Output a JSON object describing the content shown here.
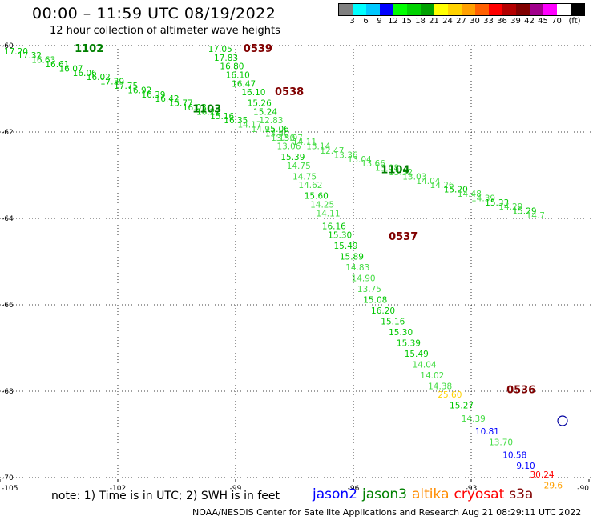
{
  "header": {
    "title": "00:00 – 11:59 UTC 08/19/2022",
    "subtitle": "12 hour collection of altimeter wave heights"
  },
  "legend": {
    "unit": "(ft)",
    "colors": [
      "#808080",
      "#00ffff",
      "#00c8ff",
      "#0000ff",
      "#00ff00",
      "#00d200",
      "#00a000",
      "#ffff00",
      "#ffd200",
      "#ffa000",
      "#ff6000",
      "#ff0000",
      "#b40000",
      "#800000",
      "#a0008c",
      "#ff00ff",
      "#ffffff",
      "#000000"
    ],
    "labels": [
      "3",
      "6",
      "9",
      "12",
      "15",
      "18",
      "21",
      "24",
      "27",
      "30",
      "33",
      "36",
      "39",
      "42",
      "45",
      "70"
    ]
  },
  "axes": {
    "x_ticks": [
      "-105",
      "-102",
      "-99",
      "-96",
      "-93",
      "-90"
    ],
    "y_ticks": [
      "-60",
      "-62",
      "-64",
      "-66",
      "-68",
      "-70"
    ]
  },
  "passes": [
    {
      "label": "1102",
      "lon": -103.1,
      "lat": -60.15,
      "color": "#008000"
    },
    {
      "label": "1103",
      "lon": -100.1,
      "lat": -61.55,
      "color": "#008000"
    },
    {
      "label": "1104",
      "lon": -95.3,
      "lat": -62.95,
      "color": "#008000"
    },
    {
      "label": "0539",
      "lon": -98.8,
      "lat": -60.15,
      "color": "#800000"
    },
    {
      "label": "0538",
      "lon": -98.0,
      "lat": -61.15,
      "color": "#800000"
    },
    {
      "label": "0537",
      "lon": -95.1,
      "lat": -64.5,
      "color": "#800000"
    },
    {
      "label": "0536",
      "lon": -92.1,
      "lat": -68.05,
      "color": "#800000"
    }
  ],
  "wave_heights": [
    {
      "v": "17.20",
      "lon": -104.9,
      "lat": -60.2,
      "c": "#00c800"
    },
    {
      "v": "17.32",
      "lon": -104.55,
      "lat": -60.3,
      "c": "#00c800"
    },
    {
      "v": "16.63",
      "lon": -104.2,
      "lat": -60.4,
      "c": "#00c800"
    },
    {
      "v": "16.61",
      "lon": -103.85,
      "lat": -60.5,
      "c": "#00c800"
    },
    {
      "v": "16.07",
      "lon": -103.5,
      "lat": -60.6,
      "c": "#00c800"
    },
    {
      "v": "16.06",
      "lon": -103.15,
      "lat": -60.7,
      "c": "#00c800"
    },
    {
      "v": "16.02",
      "lon": -102.8,
      "lat": -60.8,
      "c": "#00c800"
    },
    {
      "v": "17.39",
      "lon": -102.45,
      "lat": -60.9,
      "c": "#00c800"
    },
    {
      "v": "17.75",
      "lon": -102.1,
      "lat": -61.0,
      "c": "#00c800"
    },
    {
      "v": "16.92",
      "lon": -101.75,
      "lat": -61.1,
      "c": "#00c800"
    },
    {
      "v": "16.39",
      "lon": -101.4,
      "lat": -61.2,
      "c": "#00c800"
    },
    {
      "v": "16.42",
      "lon": -101.05,
      "lat": -61.3,
      "c": "#00c800"
    },
    {
      "v": "15.77",
      "lon": -100.7,
      "lat": -61.4,
      "c": "#00c800"
    },
    {
      "v": "16.03",
      "lon": -100.35,
      "lat": -61.5,
      "c": "#00c800"
    },
    {
      "v": "16.22",
      "lon": -100.0,
      "lat": -61.6,
      "c": "#00c800"
    },
    {
      "v": "15.16",
      "lon": -99.65,
      "lat": -61.7,
      "c": "#00c800"
    },
    {
      "v": "16.35",
      "lon": -99.3,
      "lat": -61.8,
      "c": "#00c800"
    },
    {
      "v": "14.17",
      "lon": -98.95,
      "lat": -61.9,
      "c": "#46dc46"
    },
    {
      "v": "14.95",
      "lon": -98.6,
      "lat": -62.0,
      "c": "#46dc46"
    },
    {
      "v": "13.50",
      "lon": -98.25,
      "lat": -62.1,
      "c": "#46dc46"
    },
    {
      "v": "13.97",
      "lon": -97.9,
      "lat": -62.2,
      "c": "#46dc46"
    },
    {
      "v": "14.11",
      "lon": -97.55,
      "lat": -62.3,
      "c": "#46dc46"
    },
    {
      "v": "13.14",
      "lon": -97.2,
      "lat": -62.4,
      "c": "#46dc46"
    },
    {
      "v": "12.47",
      "lon": -96.85,
      "lat": -62.5,
      "c": "#46dc46"
    },
    {
      "v": "13.36",
      "lon": -96.5,
      "lat": -62.6,
      "c": "#46dc46"
    },
    {
      "v": "13.04",
      "lon": -96.15,
      "lat": -62.7,
      "c": "#46dc46"
    },
    {
      "v": "13.66",
      "lon": -95.8,
      "lat": -62.8,
      "c": "#46dc46"
    },
    {
      "v": "13.08",
      "lon": -95.45,
      "lat": -62.9,
      "c": "#46dc46"
    },
    {
      "v": "13.32",
      "lon": -95.1,
      "lat": -63.0,
      "c": "#46dc46"
    },
    {
      "v": "13.03",
      "lon": -94.75,
      "lat": -63.1,
      "c": "#46dc46"
    },
    {
      "v": "14.04",
      "lon": -94.4,
      "lat": -63.2,
      "c": "#46dc46"
    },
    {
      "v": "14.26",
      "lon": -94.05,
      "lat": -63.3,
      "c": "#46dc46"
    },
    {
      "v": "15.20",
      "lon": -93.7,
      "lat": -63.4,
      "c": "#00c800"
    },
    {
      "v": "14.48",
      "lon": -93.35,
      "lat": -63.5,
      "c": "#46dc46"
    },
    {
      "v": "14.39",
      "lon": -93.0,
      "lat": -63.6,
      "c": "#46dc46"
    },
    {
      "v": "15.33",
      "lon": -92.65,
      "lat": -63.7,
      "c": "#00c800"
    },
    {
      "v": "14.29",
      "lon": -92.3,
      "lat": -63.8,
      "c": "#46dc46"
    },
    {
      "v": "15.29",
      "lon": -91.95,
      "lat": -63.9,
      "c": "#00c800"
    },
    {
      "v": "14.7",
      "lon": -91.6,
      "lat": -64.0,
      "c": "#46dc46"
    },
    {
      "v": "17.05",
      "lon": -99.7,
      "lat": -60.15,
      "c": "#00c800"
    },
    {
      "v": "17.83",
      "lon": -99.55,
      "lat": -60.35,
      "c": "#00c800"
    },
    {
      "v": "16.80",
      "lon": -99.4,
      "lat": -60.55,
      "c": "#00c800"
    },
    {
      "v": "16.10",
      "lon": -99.25,
      "lat": -60.75,
      "c": "#00c800"
    },
    {
      "v": "16.47",
      "lon": -99.1,
      "lat": -60.95,
      "c": "#00c800"
    },
    {
      "v": "16.10",
      "lon": -98.85,
      "lat": -61.15,
      "c": "#00c800"
    },
    {
      "v": "15.26",
      "lon": -98.7,
      "lat": -61.4,
      "c": "#00c800"
    },
    {
      "v": "15.24",
      "lon": -98.55,
      "lat": -61.6,
      "c": "#00c800"
    },
    {
      "v": "12.83",
      "lon": -98.4,
      "lat": -61.8,
      "c": "#46dc46"
    },
    {
      "v": "15.06",
      "lon": -98.25,
      "lat": -62.0,
      "c": "#00c800"
    },
    {
      "v": "13.50",
      "lon": -98.1,
      "lat": -62.2,
      "c": "#46dc46"
    },
    {
      "v": "13.06",
      "lon": -97.95,
      "lat": -62.4,
      "c": "#46dc46"
    },
    {
      "v": "15.39",
      "lon": -97.85,
      "lat": -62.65,
      "c": "#00c800"
    },
    {
      "v": "14.75",
      "lon": -97.7,
      "lat": -62.85,
      "c": "#46dc46"
    },
    {
      "v": "14.75",
      "lon": -97.55,
      "lat": -63.1,
      "c": "#46dc46"
    },
    {
      "v": "14.62",
      "lon": -97.4,
      "lat": -63.3,
      "c": "#46dc46"
    },
    {
      "v": "15.60",
      "lon": -97.25,
      "lat": -63.55,
      "c": "#00c800"
    },
    {
      "v": "14.25",
      "lon": -97.1,
      "lat": -63.75,
      "c": "#46dc46"
    },
    {
      "v": "14.11",
      "lon": -96.95,
      "lat": -63.95,
      "c": "#46dc46"
    },
    {
      "v": "16.16",
      "lon": -96.8,
      "lat": -64.25,
      "c": "#00c800"
    },
    {
      "v": "15.30",
      "lon": -96.65,
      "lat": -64.45,
      "c": "#00c800"
    },
    {
      "v": "15.49",
      "lon": -96.5,
      "lat": -64.7,
      "c": "#00c800"
    },
    {
      "v": "15.89",
      "lon": -96.35,
      "lat": -64.95,
      "c": "#00c800"
    },
    {
      "v": "14.83",
      "lon": -96.2,
      "lat": -65.2,
      "c": "#46dc46"
    },
    {
      "v": "14.90",
      "lon": -96.05,
      "lat": -65.45,
      "c": "#46dc46"
    },
    {
      "v": "13.75",
      "lon": -95.9,
      "lat": -65.7,
      "c": "#46dc46"
    },
    {
      "v": "15.08",
      "lon": -95.75,
      "lat": -65.95,
      "c": "#00c800"
    },
    {
      "v": "16.20",
      "lon": -95.55,
      "lat": -66.2,
      "c": "#00c800"
    },
    {
      "v": "15.16",
      "lon": -95.3,
      "lat": -66.45,
      "c": "#00c800"
    },
    {
      "v": "15.30",
      "lon": -95.1,
      "lat": -66.7,
      "c": "#00c800"
    },
    {
      "v": "15.39",
      "lon": -94.9,
      "lat": -66.95,
      "c": "#00c800"
    },
    {
      "v": "15.49",
      "lon": -94.7,
      "lat": -67.2,
      "c": "#00c800"
    },
    {
      "v": "14.04",
      "lon": -94.5,
      "lat": -67.45,
      "c": "#46dc46"
    },
    {
      "v": "14.02",
      "lon": -94.3,
      "lat": -67.7,
      "c": "#46dc46"
    },
    {
      "v": "14.38",
      "lon": -94.1,
      "lat": -67.95,
      "c": "#46dc46"
    },
    {
      "v": "25.60",
      "lon": -93.85,
      "lat": -68.15,
      "c": "#ffd200"
    },
    {
      "v": "15.27",
      "lon": -93.55,
      "lat": -68.4,
      "c": "#00c800"
    },
    {
      "v": "14.39",
      "lon": -93.25,
      "lat": -68.7,
      "c": "#46dc46"
    },
    {
      "v": "10.81",
      "lon": -92.9,
      "lat": -69.0,
      "c": "#0000ff"
    },
    {
      "v": "13.70",
      "lon": -92.55,
      "lat": -69.25,
      "c": "#46dc46"
    },
    {
      "v": "10.58",
      "lon": -92.2,
      "lat": -69.55,
      "c": "#0000ff"
    },
    {
      "v": "9.10",
      "lon": -91.85,
      "lat": -69.8,
      "c": "#0000ff"
    },
    {
      "v": "30.24",
      "lon": -91.5,
      "lat": -70.0,
      "c": "#ff0000"
    },
    {
      "v": "29.6",
      "lon": -91.15,
      "lat": -70.25,
      "c": "#ffa000"
    }
  ],
  "footer": {
    "note": "note: 1) Time is in UTC; 2) SWH is in feet",
    "satellites": [
      {
        "name": "jason2",
        "color": "#0000ff"
      },
      {
        "name": "jason3",
        "color": "#008000"
      },
      {
        "name": "altika",
        "color": "#ff8c00"
      },
      {
        "name": "cryosat",
        "color": "#ff0000"
      },
      {
        "name": "s3a",
        "color": "#800000"
      }
    ],
    "credit": "NOAA/NESDIS Center for Satellite Applications and Research   Aug 21 08:29:11 UTC 2022"
  }
}
